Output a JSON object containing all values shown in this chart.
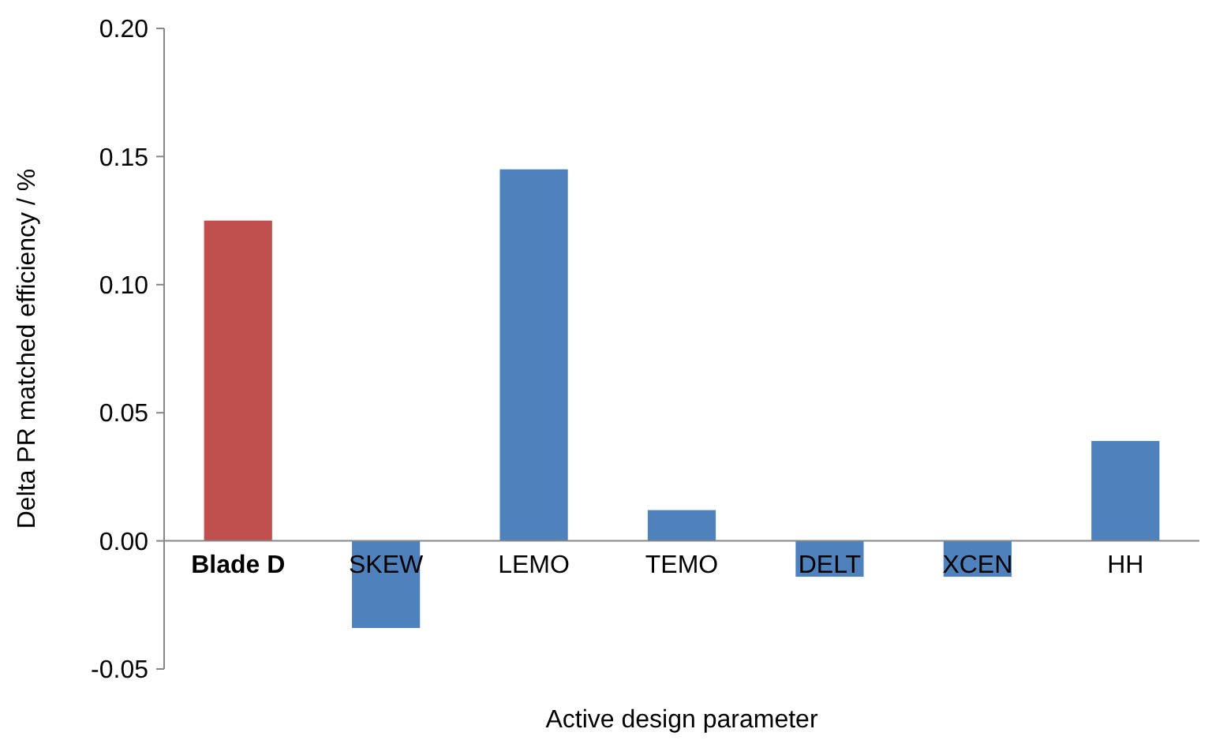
{
  "chart_data": {
    "type": "bar",
    "xlabel": "Active design parameter",
    "ylabel": "Delta PR matched efficiency / %",
    "categories": [
      "Blade D",
      "SKEW",
      "LEMO",
      "TEMO",
      "DELT",
      "XCEN",
      "HH"
    ],
    "values": [
      0.125,
      -0.034,
      0.145,
      0.012,
      -0.014,
      -0.014,
      0.039
    ],
    "colors": [
      "#c0504d",
      "#4f81bd",
      "#4f81bd",
      "#4f81bd",
      "#4f81bd",
      "#4f81bd",
      "#4f81bd"
    ],
    "ylim": [
      -0.05,
      0.2
    ],
    "yticks": [
      {
        "value": -0.05,
        "label": "-0.05"
      },
      {
        "value": 0,
        "label": "0.00"
      },
      {
        "value": 0.05,
        "label": "0.05"
      },
      {
        "value": 0.1,
        "label": "0.10"
      },
      {
        "value": 0.15,
        "label": "0.15"
      },
      {
        "value": 0.2,
        "label": "0.20"
      }
    ],
    "grid": false
  }
}
